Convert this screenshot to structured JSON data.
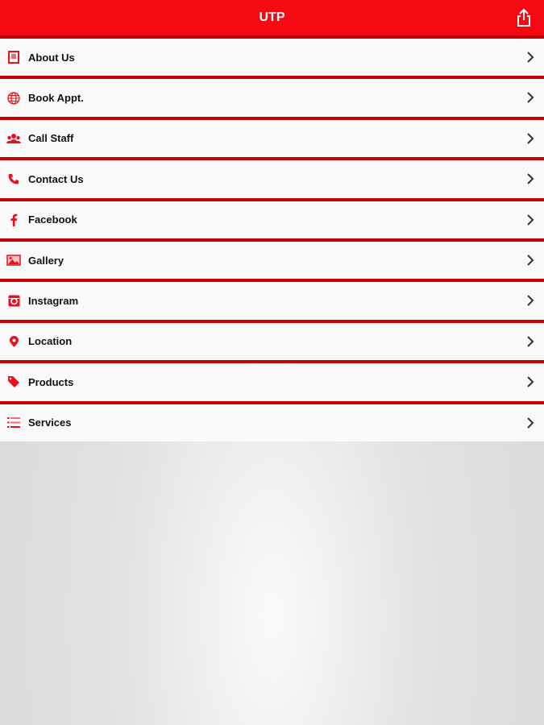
{
  "header": {
    "title": "UTP",
    "share_icon": "share-icon"
  },
  "accent": "#f50a14",
  "menu": [
    {
      "label": "About Us",
      "icon": "document-icon"
    },
    {
      "label": "Book Appt.",
      "icon": "globe-icon"
    },
    {
      "label": "Call Staff",
      "icon": "group-icon"
    },
    {
      "label": "Contact Us",
      "icon": "phone-icon"
    },
    {
      "label": "Facebook",
      "icon": "facebook-icon"
    },
    {
      "label": "Gallery",
      "icon": "image-icon"
    },
    {
      "label": "Instagram",
      "icon": "instagram-icon"
    },
    {
      "label": "Location",
      "icon": "map-pin-icon"
    },
    {
      "label": "Products",
      "icon": "tag-icon"
    },
    {
      "label": "Services",
      "icon": "list-icon"
    }
  ]
}
